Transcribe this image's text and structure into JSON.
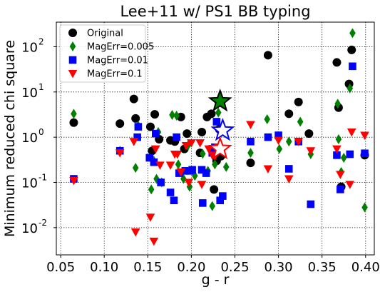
{
  "chart_data": {
    "type": "scatter",
    "title": "Lee+11 w/ PS1 BB typing",
    "xlabel": "g - r",
    "ylabel": "Minimum reduced chi square",
    "xlim": [
      0.045,
      0.41
    ],
    "ylim": [
      0.0025,
      350
    ],
    "yscale": "log",
    "grid": true,
    "legend_position": "upper left",
    "x_ticks": [
      0.05,
      0.1,
      0.15,
      0.2,
      0.25,
      0.3,
      0.35,
      0.4
    ],
    "x_tick_labels": [
      "0.05",
      "0.10",
      "0.15",
      "0.20",
      "0.25",
      "0.30",
      "0.35",
      "0.40"
    ],
    "y_ticks": [
      0.01,
      0.1,
      1,
      10,
      100
    ],
    "y_tick_labels": [
      "10",
      "10",
      "10",
      "10",
      "10"
    ],
    "y_tick_exponents": [
      "-2",
      "-1",
      "0",
      "1",
      "2"
    ],
    "series": [
      {
        "name": "Original",
        "marker": "circle",
        "color": "#000000",
        "points": [
          [
            0.065,
            2.1
          ],
          [
            0.118,
            2.0
          ],
          [
            0.134,
            7.0
          ],
          [
            0.136,
            2.6
          ],
          [
            0.153,
            1.7
          ],
          [
            0.155,
            0.5
          ],
          [
            0.158,
            3.2
          ],
          [
            0.163,
            0.9
          ],
          [
            0.176,
            0.85
          ],
          [
            0.181,
            0.8
          ],
          [
            0.188,
            2.8
          ],
          [
            0.192,
            0.55
          ],
          [
            0.195,
            1.2
          ],
          [
            0.21,
            0.45
          ],
          [
            0.212,
            1.3
          ],
          [
            0.218,
            2.8
          ],
          [
            0.223,
            3.3
          ],
          [
            0.226,
            0.07
          ],
          [
            0.229,
            0.3
          ],
          [
            0.232,
            1.5
          ],
          [
            0.234,
            0.38
          ],
          [
            0.268,
            0.27
          ],
          [
            0.288,
            65
          ],
          [
            0.312,
            3.3
          ],
          [
            0.323,
            6.0
          ],
          [
            0.335,
            1.2
          ],
          [
            0.367,
            45
          ],
          [
            0.369,
            4.5
          ],
          [
            0.372,
            0.08
          ],
          [
            0.381,
            15
          ],
          [
            0.384,
            85
          ],
          [
            0.399,
            0.4
          ]
        ]
      },
      {
        "name": "MagErr=0.005",
        "marker": "thin_diamond",
        "color": "#008000",
        "points": [
          [
            0.065,
            3.3
          ],
          [
            0.118,
            0.5
          ],
          [
            0.136,
            0.21
          ],
          [
            0.139,
            1.8
          ],
          [
            0.154,
            0.07
          ],
          [
            0.157,
            0.3
          ],
          [
            0.16,
            0.12
          ],
          [
            0.162,
            1.3
          ],
          [
            0.166,
            0.1
          ],
          [
            0.178,
            3.1
          ],
          [
            0.183,
            3.0
          ],
          [
            0.185,
            0.25
          ],
          [
            0.191,
            0.12
          ],
          [
            0.196,
            0.65
          ],
          [
            0.198,
            0.08
          ],
          [
            0.204,
            0.14
          ],
          [
            0.213,
            0.43
          ],
          [
            0.219,
            0.18
          ],
          [
            0.224,
            0.03
          ],
          [
            0.227,
            0.25
          ],
          [
            0.231,
            3.5
          ],
          [
            0.235,
            0.6
          ],
          [
            0.24,
            0.22
          ],
          [
            0.268,
            0.45
          ],
          [
            0.287,
            2.5
          ],
          [
            0.301,
            0.55
          ],
          [
            0.312,
            0.8
          ],
          [
            0.325,
            2.2
          ],
          [
            0.337,
            0.42
          ],
          [
            0.368,
            5.5
          ],
          [
            0.369,
            0.9
          ],
          [
            0.372,
            0.17
          ],
          [
            0.375,
            0.35
          ],
          [
            0.382,
            12
          ],
          [
            0.385,
            200
          ],
          [
            0.399,
            0.028
          ]
        ]
      },
      {
        "name": "MagErr=0.01",
        "marker": "square",
        "color": "#0000ff",
        "points": [
          [
            0.065,
            0.12
          ],
          [
            0.118,
            0.5
          ],
          [
            0.138,
            1.0
          ],
          [
            0.139,
            1.7
          ],
          [
            0.152,
            0.35
          ],
          [
            0.157,
            0.28
          ],
          [
            0.159,
            1.2
          ],
          [
            0.165,
            0.1
          ],
          [
            0.176,
            0.06
          ],
          [
            0.18,
            0.04
          ],
          [
            0.183,
            1.0
          ],
          [
            0.186,
            0.16
          ],
          [
            0.193,
            0.18
          ],
          [
            0.198,
            0.18
          ],
          [
            0.201,
            0.19
          ],
          [
            0.212,
            0.19
          ],
          [
            0.213,
            0.035
          ],
          [
            0.217,
            0.16
          ],
          [
            0.224,
            0.45
          ],
          [
            0.227,
            0.6
          ],
          [
            0.229,
            2.2
          ],
          [
            0.233,
            0.04
          ],
          [
            0.236,
            0.05
          ],
          [
            0.268,
            0.8
          ],
          [
            0.288,
            1.0
          ],
          [
            0.3,
            1.1
          ],
          [
            0.312,
            0.2
          ],
          [
            0.323,
            0.8
          ],
          [
            0.337,
            0.033
          ],
          [
            0.367,
            0.4
          ],
          [
            0.371,
            0.07
          ],
          [
            0.382,
            0.42
          ],
          [
            0.385,
            37
          ],
          [
            0.399,
            0.44
          ]
        ]
      },
      {
        "name": "MagErr=0.1",
        "marker": "triangle_down",
        "color": "#ff0000",
        "points": [
          [
            0.065,
            0.11
          ],
          [
            0.118,
            0.45
          ],
          [
            0.134,
            0.8
          ],
          [
            0.136,
            0.008
          ],
          [
            0.153,
            0.017
          ],
          [
            0.157,
            0.005
          ],
          [
            0.159,
            0.55
          ],
          [
            0.164,
            0.24
          ],
          [
            0.176,
            0.24
          ],
          [
            0.181,
            0.42
          ],
          [
            0.184,
            0.42
          ],
          [
            0.188,
            0.17
          ],
          [
            0.194,
            0.65
          ],
          [
            0.197,
            0.1
          ],
          [
            0.2,
            0.75
          ],
          [
            0.21,
            0.75
          ],
          [
            0.212,
            0.09
          ],
          [
            0.22,
            0.55
          ],
          [
            0.224,
            0.4
          ],
          [
            0.227,
            0.38
          ],
          [
            0.231,
            0.6
          ],
          [
            0.234,
            0.5
          ],
          [
            0.268,
            1.9
          ],
          [
            0.288,
            0.2
          ],
          [
            0.3,
            0.85
          ],
          [
            0.312,
            0.12
          ],
          [
            0.323,
            0.8
          ],
          [
            0.337,
            0.5
          ],
          [
            0.367,
            0.55
          ],
          [
            0.371,
            0.15
          ],
          [
            0.382,
            0.09
          ],
          [
            0.384,
            1.3
          ],
          [
            0.399,
            1.1
          ]
        ]
      }
    ],
    "highlights": [
      {
        "marker": "star",
        "fill": "#008000",
        "edge": "#000000",
        "x": 0.233,
        "y": 6.2
      },
      {
        "marker": "star",
        "fill": "#ffffff",
        "edge": "#0000ff",
        "x": 0.236,
        "y": 1.4
      },
      {
        "marker": "star",
        "fill": "#ffffff",
        "edge": "#ff0000",
        "x": 0.233,
        "y": 0.55
      }
    ]
  }
}
